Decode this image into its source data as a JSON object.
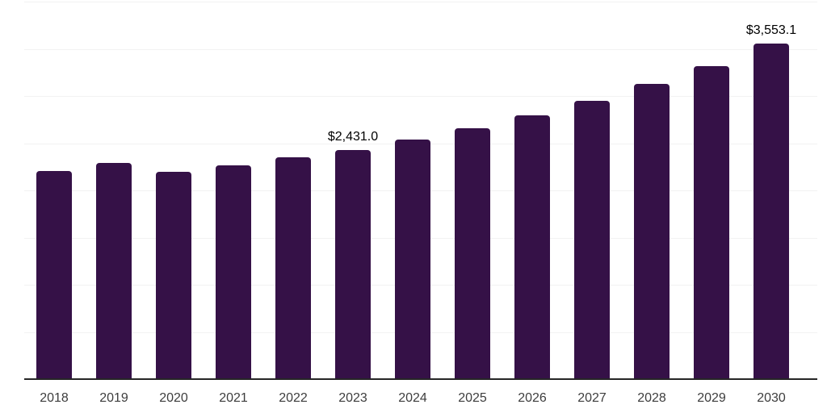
{
  "chart_data": {
    "type": "bar",
    "title": "",
    "xlabel": "",
    "ylabel": "",
    "categories": [
      "2018",
      "2019",
      "2020",
      "2021",
      "2022",
      "2023",
      "2024",
      "2025",
      "2026",
      "2027",
      "2028",
      "2029",
      "2030"
    ],
    "values": [
      2205,
      2290,
      2197,
      2265,
      2350,
      2431.0,
      2540,
      2658,
      2795,
      2945,
      3125,
      3320,
      3553.1
    ],
    "labeled_points": [
      {
        "index": 5,
        "category": "2023",
        "label": "$2,431.0"
      },
      {
        "index": 12,
        "category": "2030",
        "label": "$3,553.1"
      }
    ],
    "ylim": [
      0,
      4000
    ],
    "gridline_step": 500,
    "grid": true,
    "y_axis_labels_visible": false,
    "legend": "none"
  },
  "style": {
    "bar_color": "#351147",
    "axis_line_color": "#262626",
    "gridline_color": "#f2f2f2",
    "value_label_color": "#000000",
    "tick_label_color": "#3d3d3d",
    "background": "#ffffff"
  }
}
